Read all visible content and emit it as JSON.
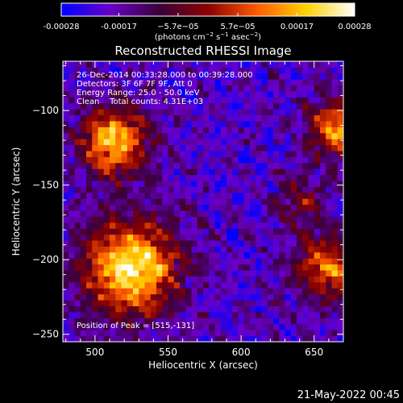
{
  "colorbar": {
    "tick_labels": [
      "-0.00028",
      "-0.00017",
      "−5.7e−05",
      "5.7e−05",
      "0.00017",
      "0.00028"
    ],
    "ticks": [
      -0.00028,
      -0.00017,
      -5.7e-05,
      5.7e-05,
      0.00017,
      0.00028
    ],
    "range": [
      -0.00028,
      0.00028
    ],
    "units": {
      "open": "(photons cm",
      "sup1": "−2",
      "mid1": " s",
      "sup2": "−1",
      "mid2": " asec",
      "sup3": "−2",
      "close": ")"
    },
    "colors": [
      "#0000ff",
      "#6a00c8",
      "#3a003a",
      "#8a0000",
      "#ff5a00",
      "#ffd000",
      "#ffffff"
    ]
  },
  "chart_data": {
    "type": "heatmap",
    "title": "Reconstructed RHESSI Image",
    "xlabel": "Heliocentric X (arcsec)",
    "ylabel": "Heliocentric Y (arcsec)",
    "xlim": [
      478,
      670
    ],
    "ylim": [
      -255,
      -67
    ],
    "x_ticks": [
      500,
      550,
      600,
      650
    ],
    "y_ticks": [
      -250,
      -200,
      -150,
      -100
    ],
    "x_tick_labels": [
      "500",
      "550",
      "600",
      "650"
    ],
    "y_tick_labels": [
      "−250",
      "−200",
      "−150",
      "−100"
    ],
    "pixel_size_arcsec": 4,
    "peak": [
      515,
      -131
    ],
    "sources": [
      {
        "x": 525,
        "y": -205,
        "amp": 1.0,
        "sigma": 22
      },
      {
        "x": 513,
        "y": -120,
        "amp": 0.85,
        "sigma": 16
      },
      {
        "x": 665,
        "y": -112,
        "amp": 0.75,
        "sigma": 13
      },
      {
        "x": 660,
        "y": -205,
        "amp": 0.7,
        "sigma": 15
      },
      {
        "x": 640,
        "y": -160,
        "amp": 0.35,
        "sigma": 12
      }
    ],
    "annotations": [
      "26-Dec-2014 00:33:28.000 to 00:39:28.000",
      "Detectors: 3F 6F 7F 9F, Att 0",
      "Energy Range: 25.0 - 50.0 keV",
      "Clean    Total counts: 4.31E+03",
      "Position of Peak = [515,-131]"
    ]
  },
  "footer": {
    "timestamp": "21-May-2022 00:45"
  }
}
